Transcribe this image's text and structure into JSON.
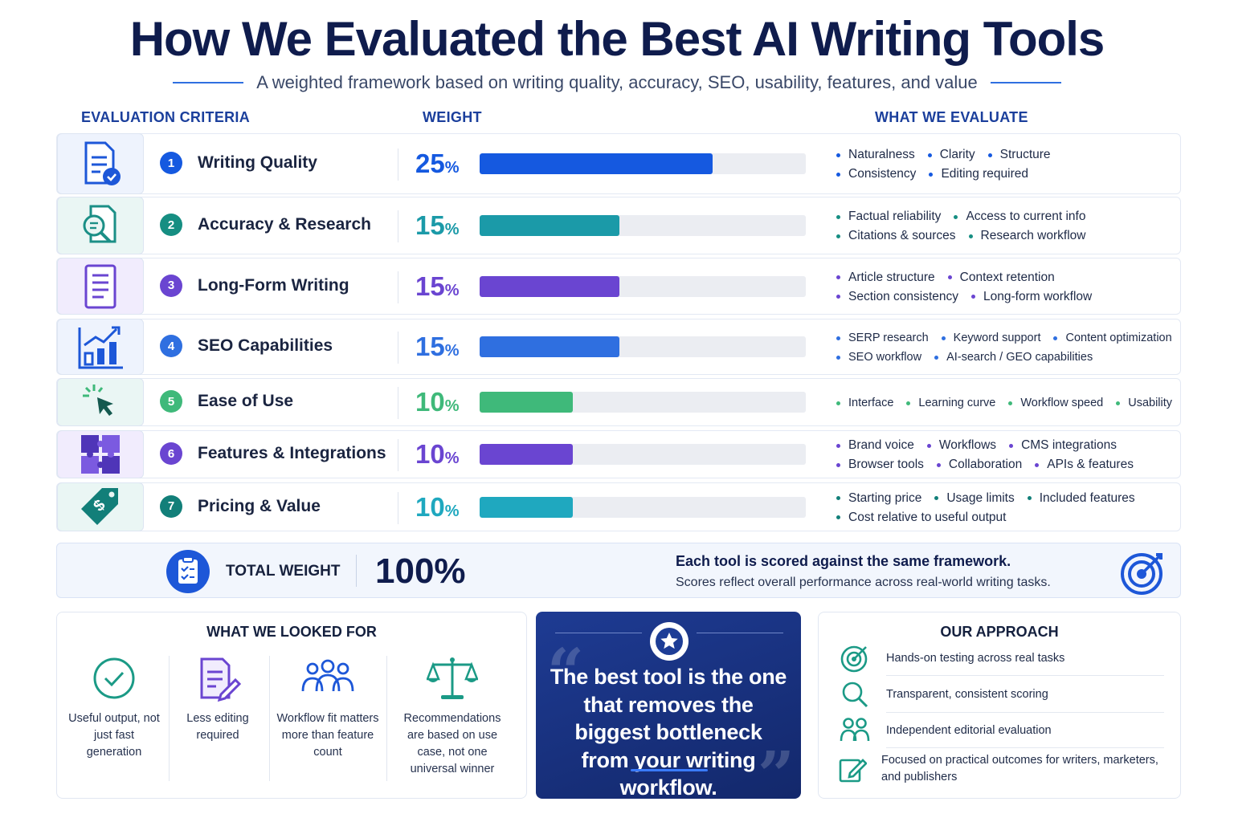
{
  "title": "How We Evaluated the Best AI Writing Tools",
  "subtitle": "A weighted framework based on writing quality, accuracy, SEO, usability, features, and value",
  "headers": {
    "criteria": "EVALUATION CRITERIA",
    "weight": "WEIGHT",
    "evaluate": "WHAT WE EVALUATE"
  },
  "chart_data": {
    "type": "bar",
    "categories": [
      "Writing Quality",
      "Accuracy & Research",
      "Long-Form Writing",
      "SEO Capabilities",
      "Ease of Use",
      "Features & Integrations",
      "Pricing & Value"
    ],
    "values": [
      25,
      15,
      15,
      15,
      10,
      10,
      10
    ],
    "unit": "%",
    "xlim": [
      0,
      35
    ],
    "colors": [
      "#1559e0",
      "#1b9aa8",
      "#6a45d1",
      "#2f6fe0",
      "#3fb97a",
      "#6a45d1",
      "#1fa8bf"
    ]
  },
  "criteria": [
    {
      "num": "1",
      "name": "Writing Quality",
      "pct": "25",
      "pct_sign": "%",
      "items": [
        [
          "Naturalness",
          "Clarity",
          "Structure"
        ],
        [
          "Consistency",
          "Editing required"
        ]
      ]
    },
    {
      "num": "2",
      "name": "Accuracy & Research",
      "pct": "15",
      "pct_sign": "%",
      "items": [
        [
          "Factual reliability",
          "Access to current info"
        ],
        [
          "Citations & sources",
          "Research workflow"
        ]
      ]
    },
    {
      "num": "3",
      "name": "Long-Form Writing",
      "pct": "15",
      "pct_sign": "%",
      "items": [
        [
          "Article structure",
          "Context retention"
        ],
        [
          "Section consistency",
          "Long-form workflow"
        ]
      ]
    },
    {
      "num": "4",
      "name": "SEO Capabilities",
      "pct": "15",
      "pct_sign": "%",
      "items": [
        [
          "SERP research",
          "Keyword support",
          "Content optimization"
        ],
        [
          "SEO workflow",
          "AI-search / GEO capabilities"
        ]
      ]
    },
    {
      "num": "5",
      "name": "Ease of Use",
      "pct": "10",
      "pct_sign": "%",
      "items": [
        [
          "Interface",
          "Learning curve",
          "Workflow speed",
          "Usability"
        ]
      ]
    },
    {
      "num": "6",
      "name": "Features & Integrations",
      "pct": "10",
      "pct_sign": "%",
      "items": [
        [
          "Brand voice",
          "Workflows",
          "CMS integrations"
        ],
        [
          "Browser tools",
          "Collaboration",
          "APIs & features"
        ]
      ]
    },
    {
      "num": "7",
      "name": "Pricing & Value",
      "pct": "10",
      "pct_sign": "%",
      "items": [
        [
          "Starting price",
          "Usage limits",
          "Included features"
        ],
        [
          "Cost relative to useful output"
        ]
      ]
    }
  ],
  "total": {
    "label": "TOTAL WEIGHT",
    "value": "100%",
    "note_title": "Each tool is scored against the same framework.",
    "note_text": "Scores reflect overall performance across real-world writing tasks."
  },
  "looked_for": {
    "title": "WHAT WE LOOKED FOR",
    "items": [
      "Useful output, not just fast generation",
      "Less editing required",
      "Workflow fit matters more than feature count",
      "Recommendations are based on use case, not one universal winner"
    ]
  },
  "quote": {
    "text": "The best tool is the one that removes the biggest bottleneck from your writing workflow."
  },
  "approach": {
    "title": "OUR APPROACH",
    "items": [
      "Hands-on testing across real tasks",
      "Transparent, consistent scoring",
      "Independent editorial evaluation",
      "Focused on practical outcomes for writers, marketers, and publishers"
    ]
  }
}
